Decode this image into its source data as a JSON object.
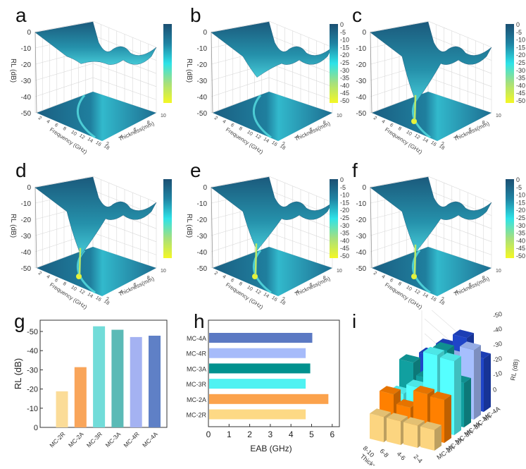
{
  "chart_data": [
    {
      "panel": "a",
      "type": "surface3d",
      "zlabel": "RL (dB)",
      "xlabel": "Frequency (GHz)",
      "ylabel": "Thickness(mm)",
      "z_ticks": [
        "0",
        "-10",
        "-20",
        "-30",
        "-40",
        "-50"
      ],
      "x_ticks": [
        "2",
        "4",
        "6",
        "8",
        "10",
        "12",
        "14",
        "16",
        "18"
      ],
      "y_ticks": [
        "2",
        "4",
        "6",
        "8",
        "10"
      ],
      "colorbar_ticks": [
        "0",
        "-5",
        "-10",
        "-15",
        "-20",
        "-25",
        "-30",
        "-35",
        "-40",
        "-45",
        "-50"
      ],
      "min_rl": -19,
      "zlim": [
        -50,
        0
      ]
    },
    {
      "panel": "b",
      "type": "surface3d",
      "zlabel": "RL (dB)",
      "xlabel": "Frequency (GHz)",
      "ylabel": "Thickness(mm)",
      "z_ticks": [
        "0",
        "-10",
        "-20",
        "-30",
        "-40",
        "-50"
      ],
      "x_ticks": [
        "2",
        "4",
        "6",
        "8",
        "10",
        "12",
        "14",
        "16",
        "18"
      ],
      "y_ticks": [
        "2",
        "4",
        "6",
        "8",
        "10"
      ],
      "colorbar_ticks": [
        "0",
        "-5",
        "-10",
        "-15",
        "-20",
        "-25",
        "-30",
        "-35",
        "-40",
        "-45",
        "-50"
      ],
      "min_rl": -31,
      "zlim": [
        -50,
        0
      ]
    },
    {
      "panel": "c",
      "type": "surface3d",
      "zlabel": "RL (dB)",
      "xlabel": "Frequency (GHz)",
      "ylabel": "Thickness(mm)",
      "z_ticks": [
        "0",
        "-10",
        "-20",
        "-30",
        "-40",
        "-50"
      ],
      "x_ticks": [
        "2",
        "4",
        "6",
        "8",
        "10",
        "12",
        "14",
        "16",
        "18"
      ],
      "y_ticks": [
        "2",
        "4",
        "6",
        "8",
        "10"
      ],
      "colorbar_ticks": [
        "0",
        "-5",
        "-10",
        "-15",
        "-20",
        "-25",
        "-30",
        "-35",
        "-40",
        "-45",
        "-50"
      ],
      "min_rl": -53,
      "zlim": [
        -50,
        0
      ]
    },
    {
      "panel": "d",
      "type": "surface3d",
      "zlabel": "RL (dB)",
      "xlabel": "Frequency (GHz)",
      "ylabel": "Thickness(mm)",
      "z_ticks": [
        "0",
        "-10",
        "-20",
        "-30",
        "-40",
        "-50"
      ],
      "x_ticks": [
        "2",
        "4",
        "6",
        "8",
        "10",
        "12",
        "14",
        "16",
        "18"
      ],
      "y_ticks": [
        "2",
        "4",
        "6",
        "8",
        "10"
      ],
      "colorbar_ticks": [
        "0",
        "-5",
        "-10",
        "-15",
        "-20",
        "-25",
        "-30",
        "-35",
        "-40",
        "-45",
        "-50"
      ],
      "min_rl": -51,
      "zlim": [
        -50,
        0
      ]
    },
    {
      "panel": "e",
      "type": "surface3d",
      "zlabel": "RL (dB)",
      "xlabel": "Frequency (GHz)",
      "ylabel": "Thickness(mm)",
      "z_ticks": [
        "0",
        "-10",
        "-20",
        "-30",
        "-40",
        "-50"
      ],
      "x_ticks": [
        "2",
        "4",
        "6",
        "8",
        "10",
        "12",
        "14",
        "16",
        "18"
      ],
      "y_ticks": [
        "2",
        "4",
        "6",
        "8",
        "10"
      ],
      "colorbar_ticks": [
        "0",
        "-5",
        "-10",
        "-15",
        "-20",
        "-25",
        "-30",
        "-35",
        "-40",
        "-45",
        "-50"
      ],
      "min_rl": -47,
      "zlim": [
        -50,
        0
      ]
    },
    {
      "panel": "f",
      "type": "surface3d",
      "zlabel": "RL (dB)",
      "xlabel": "Frequency (GHz)",
      "ylabel": "Thickness(mm)",
      "z_ticks": [
        "0",
        "-10",
        "-20",
        "-30",
        "-40",
        "-50"
      ],
      "x_ticks": [
        "2",
        "4",
        "6",
        "8",
        "10",
        "12",
        "14",
        "16",
        "18"
      ],
      "y_ticks": [
        "2",
        "4",
        "6",
        "8",
        "10"
      ],
      "colorbar_ticks": [
        "0",
        "-5",
        "-10",
        "-15",
        "-20",
        "-25",
        "-30",
        "-35",
        "-40",
        "-45",
        "-50"
      ],
      "min_rl": -48,
      "zlim": [
        -50,
        0
      ]
    },
    {
      "panel": "g",
      "type": "bar",
      "title": "",
      "categories": [
        "MC-2R",
        "MC-2A",
        "MC-3R",
        "MC-3A",
        "MC-4R",
        "MC-4A"
      ],
      "values": [
        -18.8,
        -31.4,
        -52.7,
        -50.9,
        -47.1,
        -47.8
      ],
      "colors": [
        "#fbdc98",
        "#f9a55a",
        "#72dcd9",
        "#5bbab6",
        "#a4b2f2",
        "#5f80c6"
      ],
      "xlabel": "",
      "ylabel": "RL (dB)",
      "ylim": [
        0,
        -55
      ],
      "y_ticks": [
        "0",
        "-10",
        "-20",
        "-30",
        "-40",
        "-50"
      ],
      "grid": false
    },
    {
      "panel": "h",
      "type": "bar",
      "orientation": "horizontal",
      "categories": [
        "MC-4A",
        "MC-4R",
        "MC-3A",
        "MC-3R",
        "MC-2A",
        "MC-2R"
      ],
      "values": [
        5.0,
        4.68,
        4.9,
        4.68,
        5.78,
        4.68
      ],
      "colors": [
        "#5b79c3",
        "#a6bbfa",
        "#00918e",
        "#4ff2f2",
        "#fba24c",
        "#fdd985"
      ],
      "xlabel": "EAB (GHz)",
      "ylabel": "",
      "xlim": [
        0,
        6.4
      ],
      "x_ticks": [
        "0",
        "1",
        "2",
        "3",
        "4",
        "5",
        "6"
      ],
      "grid": false
    },
    {
      "panel": "i",
      "type": "bar3d",
      "xlabel": "Thickness (mm)",
      "ylabel": "",
      "zlabel": "RL (dB)",
      "thickness_ranges": [
        "8-10",
        "6-8",
        "4-6",
        "2-4"
      ],
      "samples": [
        "MC-2R",
        "MC-2A",
        "MC-3R",
        "MC-3A",
        "MC-4R",
        "MC-4A"
      ],
      "z_ticks": [
        "0",
        "-10",
        "-20",
        "-30",
        "-40",
        "-50"
      ],
      "series": [
        {
          "name": "MC-2R",
          "color": "#fcd580",
          "values": [
            -17,
            -16,
            -15,
            -14
          ]
        },
        {
          "name": "MC-2A",
          "color": "#ff8000",
          "values": [
            -27,
            -20,
            -31,
            -29
          ]
        },
        {
          "name": "MC-3R",
          "color": "#55ffff",
          "values": [
            -22,
            -28,
            -52,
            -50
          ]
        },
        {
          "name": "MC-3A",
          "color": "#11a0a0",
          "values": [
            -38,
            -29,
            -50,
            -30
          ]
        },
        {
          "name": "MC-4R",
          "color": "#a6bffe",
          "values": [
            -20,
            -28,
            -40,
            -47
          ]
        },
        {
          "name": "MC-4A",
          "color": "#1f45c8",
          "values": [
            -32,
            -40,
            -48,
            -36
          ]
        }
      ],
      "zlim": [
        0,
        -50
      ]
    }
  ],
  "panel_labels": [
    "a",
    "b",
    "c",
    "d",
    "e",
    "f",
    "g",
    "h",
    "i"
  ]
}
